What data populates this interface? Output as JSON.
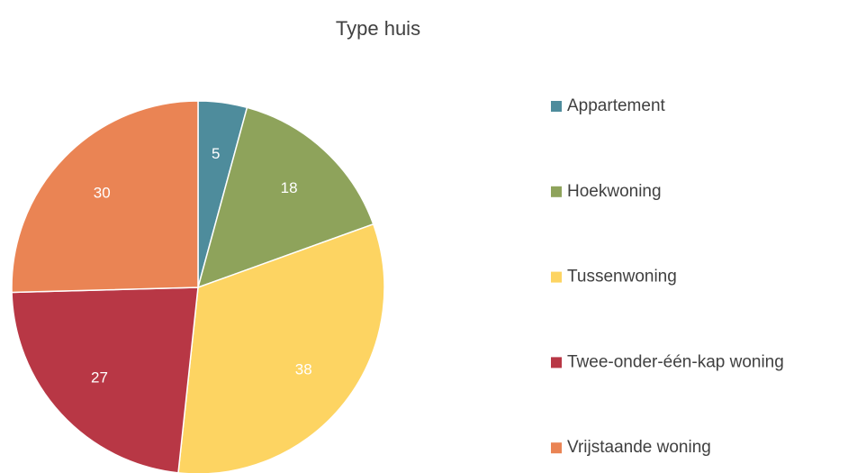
{
  "chart_data": {
    "type": "pie",
    "title": "Type huis",
    "categories": [
      "Appartement",
      "Hoekwoning",
      "Tussenwoning",
      "Twee-onder-één-kap woning",
      "Vrijstaande woning"
    ],
    "values": [
      5,
      18,
      38,
      27,
      30
    ],
    "colors": [
      "#4e8c9c",
      "#8ea35b",
      "#fdd462",
      "#b83745",
      "#ea8454"
    ],
    "legend": "right"
  }
}
